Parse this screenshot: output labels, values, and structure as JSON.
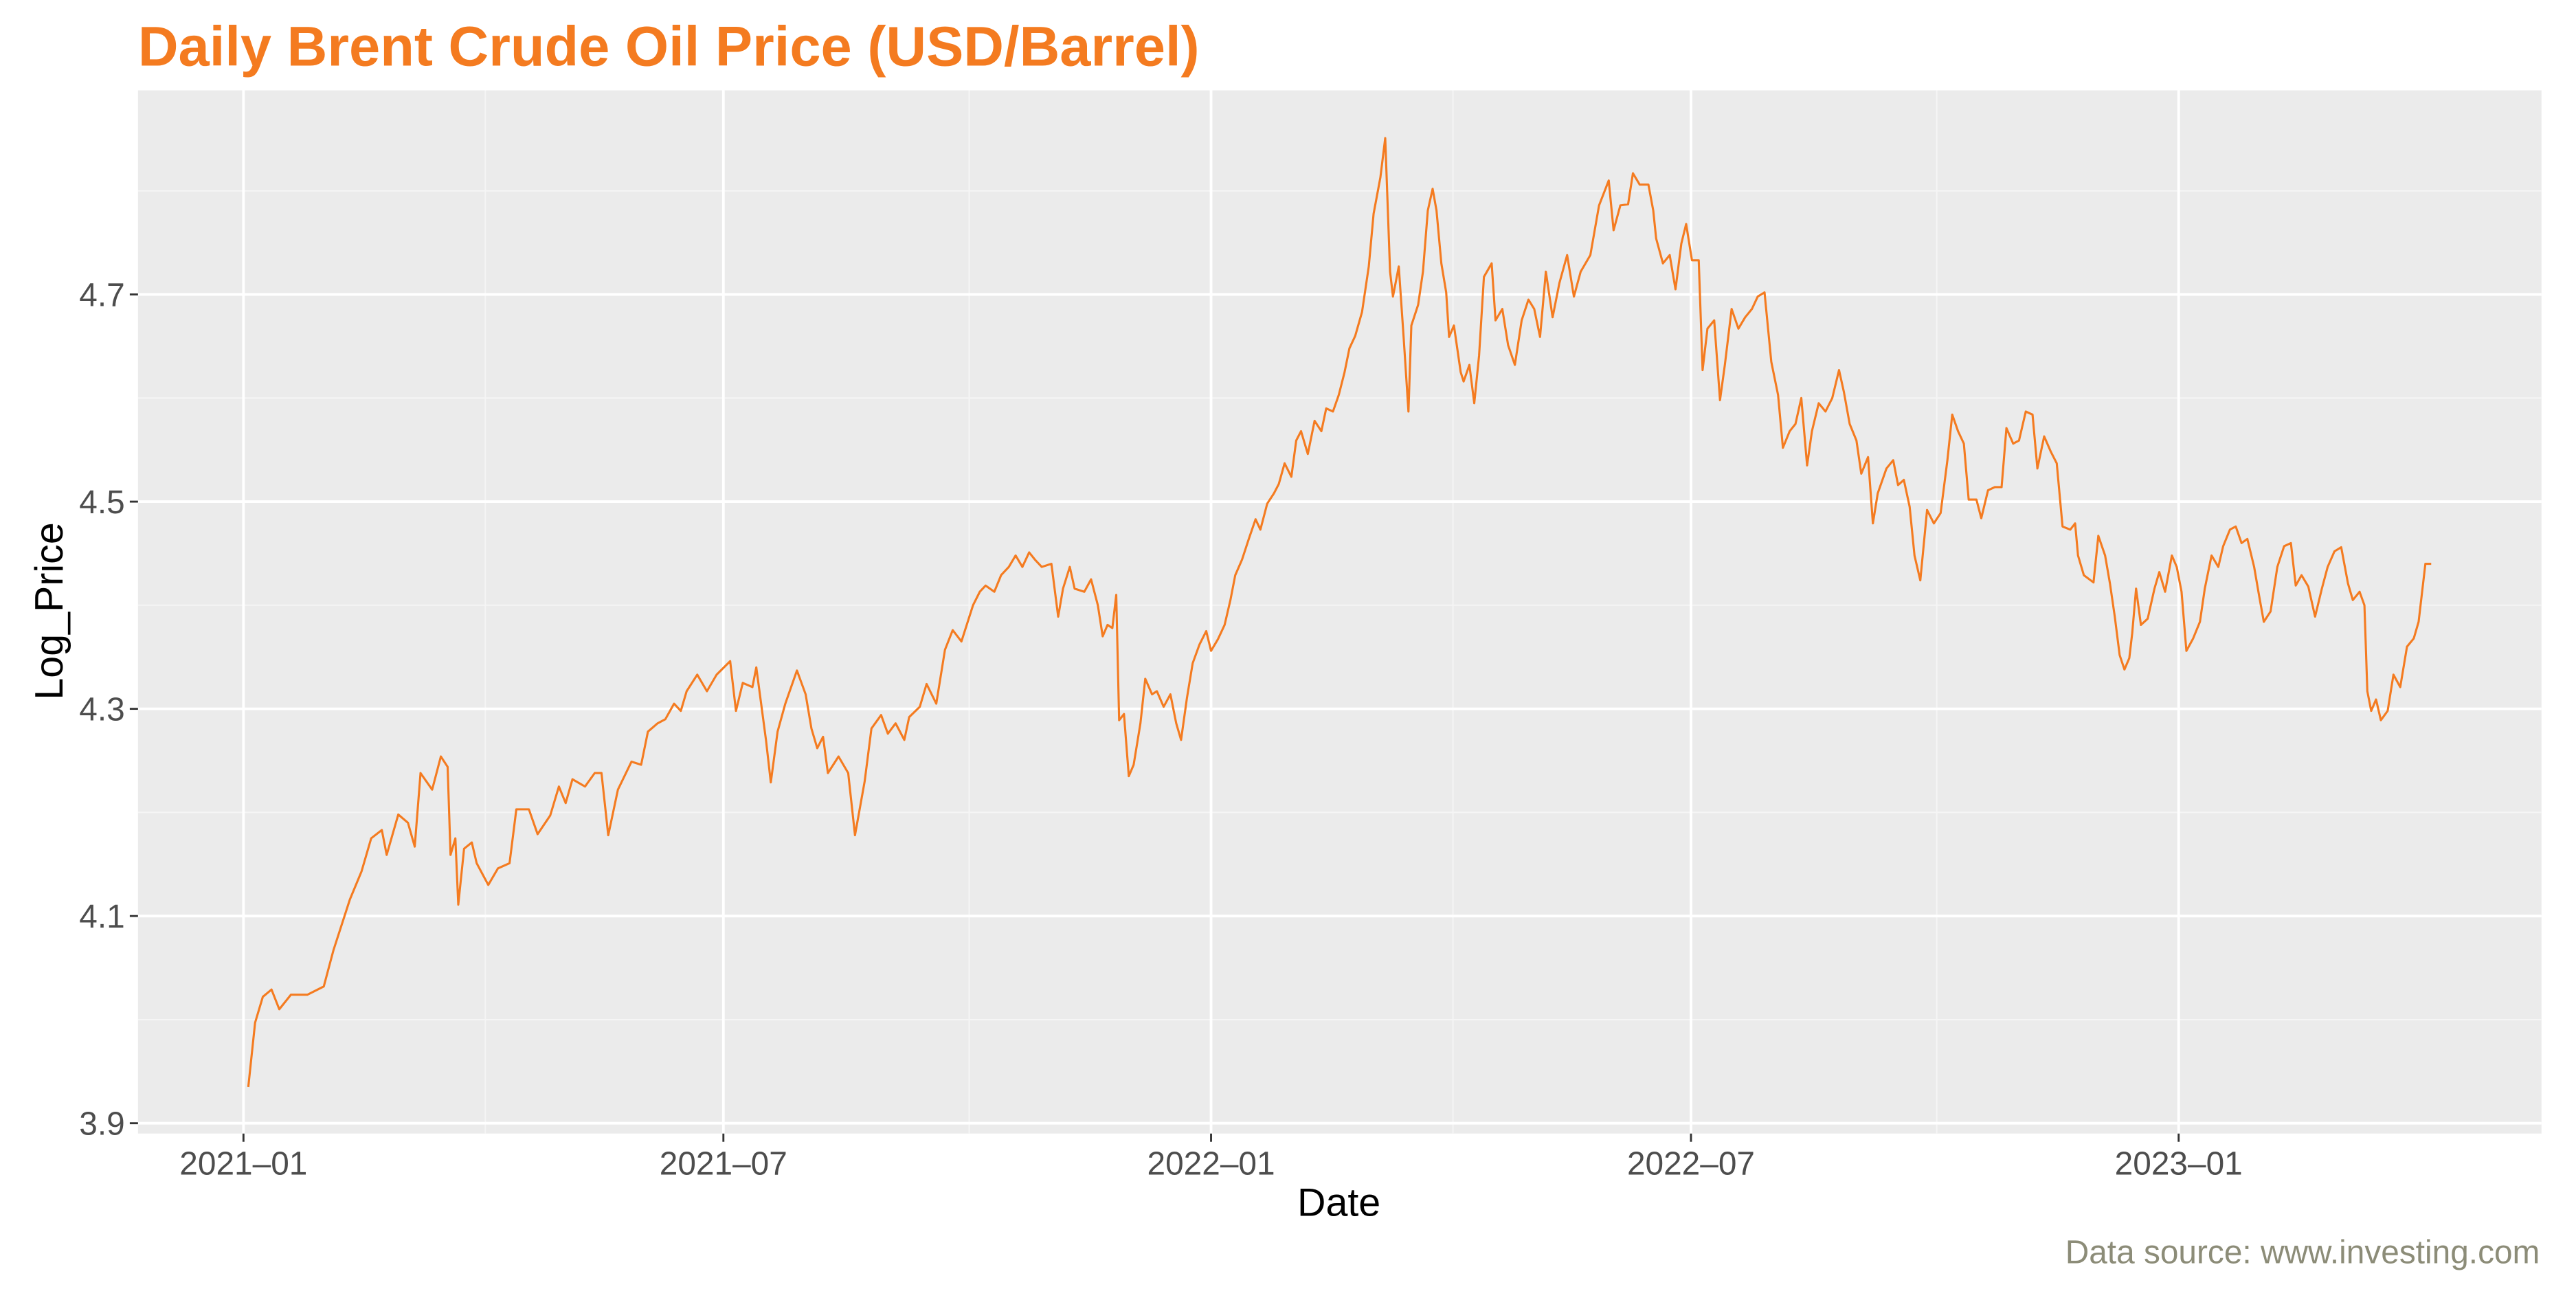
{
  "chart_data": {
    "type": "line",
    "title": "Daily Brent Crude Oil Price (USD/Barrel)",
    "xlabel": "Date",
    "ylabel": "Log_Price",
    "caption": "Data source: www.investing.com",
    "color": "#f47b20",
    "grid": true,
    "xlim": [
      2020.891,
      2023.375
    ],
    "ylim": [
      3.89,
      4.897
    ],
    "xticks": [
      {
        "value": 2021.0,
        "label": "2021‒01"
      },
      {
        "value": 2021.496,
        "label": "2021‒07"
      },
      {
        "value": 2022.0,
        "label": "2022‒01"
      },
      {
        "value": 2022.496,
        "label": "2022‒07"
      },
      {
        "value": 2023.0,
        "label": "2023‒01"
      }
    ],
    "yticks": [
      3.9,
      4.1,
      4.3,
      4.5,
      4.7
    ],
    "xminor": [
      2021.25,
      2021.75,
      2022.25,
      2022.75
    ],
    "yminor": [
      4.0,
      4.2,
      4.4,
      4.6,
      4.8
    ],
    "x": [
      2021.005,
      2021.012,
      2021.02,
      2021.029,
      2021.037,
      2021.049,
      2021.066,
      2021.083,
      2021.093,
      2021.11,
      2021.122,
      2021.132,
      2021.143,
      2021.148,
      2021.16,
      2021.17,
      2021.177,
      2021.183,
      2021.195,
      2021.204,
      2021.211,
      2021.214,
      2021.219,
      2021.222,
      2021.228,
      2021.236,
      2021.241,
      2021.253,
      2021.263,
      2021.275,
      2021.282,
      2021.295,
      2021.304,
      2021.317,
      2021.326,
      2021.333,
      2021.34,
      2021.353,
      2021.363,
      2021.37,
      2021.377,
      2021.387,
      2021.401,
      2021.411,
      2021.418,
      2021.428,
      2021.436,
      2021.445,
      2021.452,
      2021.458,
      2021.469,
      2021.479,
      2021.489,
      2021.503,
      2021.509,
      2021.516,
      2021.526,
      2021.53,
      2021.535,
      2021.54,
      2021.545,
      2021.552,
      2021.56,
      2021.572,
      2021.581,
      2021.587,
      2021.593,
      2021.599,
      2021.604,
      2021.615,
      2021.625,
      2021.632,
      2021.642,
      2021.649,
      2021.659,
      2021.666,
      2021.674,
      2021.683,
      2021.688,
      2021.699,
      2021.706,
      2021.716,
      2021.725,
      2021.733,
      2021.742,
      2021.754,
      2021.761,
      2021.767,
      2021.776,
      2021.783,
      2021.791,
      2021.798,
      2021.805,
      2021.812,
      2021.818,
      2021.825,
      2021.835,
      2021.842,
      2021.847,
      2021.854,
      2021.859,
      2021.869,
      2021.876,
      2021.883,
      2021.888,
      2021.893,
      2021.898,
      2021.902,
      2021.905,
      2021.91,
      2021.915,
      2021.92,
      2021.927,
      2021.932,
      2021.939,
      2021.944,
      2021.951,
      2021.958,
      2021.964,
      2021.969,
      2021.975,
      2021.981,
      2021.988,
      2021.995,
      2022.0,
      2022.007,
      2022.014,
      2022.02,
      2022.025,
      2022.032,
      2022.039,
      2022.046,
      2022.051,
      2022.058,
      2022.065,
      2022.07,
      2022.076,
      2022.083,
      2022.088,
      2022.093,
      2022.1,
      2022.107,
      2022.114,
      2022.119,
      2022.126,
      2022.132,
      2022.138,
      2022.143,
      2022.149,
      2022.156,
      2022.163,
      2022.168,
      2022.175,
      2022.18,
      2022.185,
      2022.188,
      2022.194,
      2022.199,
      2022.204,
      2022.207,
      2022.214,
      2022.219,
      2022.224,
      2022.229,
      2022.233,
      2022.238,
      2022.243,
      2022.246,
      2022.251,
      2022.258,
      2022.261,
      2022.267,
      2022.272,
      2022.277,
      2022.282,
      2022.29,
      2022.294,
      2022.301,
      2022.307,
      2022.314,
      2022.321,
      2022.328,
      2022.334,
      2022.34,
      2022.346,
      2022.353,
      2022.36,
      2022.368,
      2022.375,
      2022.382,
      2022.392,
      2022.401,
      2022.411,
      2022.416,
      2022.423,
      2022.431,
      2022.436,
      2022.443,
      2022.452,
      2022.457,
      2022.46,
      2022.467,
      2022.474,
      2022.48,
      2022.486,
      2022.491,
      2022.497,
      2022.504,
      2022.508,
      2022.513,
      2022.52,
      2022.526,
      2022.531,
      2022.538,
      2022.545,
      2022.552,
      2022.559,
      2022.565,
      2022.572,
      2022.579,
      2022.586,
      2022.591,
      2022.598,
      2022.604,
      2022.61,
      2022.616,
      2022.621,
      2022.628,
      2022.635,
      2022.642,
      2022.649,
      2022.654,
      2022.66,
      2022.667,
      2022.672,
      2022.679,
      2022.684,
      2022.689,
      2022.698,
      2022.705,
      2022.71,
      2022.716,
      2022.722,
      2022.727,
      2022.733,
      2022.74,
      2022.747,
      2022.754,
      2022.761,
      2022.766,
      2022.772,
      2022.778,
      2022.783,
      2022.791,
      2022.796,
      2022.803,
      2022.81,
      2022.817,
      2022.822,
      2022.829,
      2022.835,
      2022.842,
      2022.849,
      2022.854,
      2022.861,
      2022.868,
      2022.874,
      2022.88,
      2022.888,
      2022.893,
      2022.896,
      2022.902,
      2022.912,
      2022.917,
      2022.924,
      2022.929,
      2022.934,
      2022.939,
      2022.944,
      2022.949,
      2022.952,
      2022.956,
      2022.961,
      2022.968,
      2022.975,
      2022.98,
      2022.986,
      2022.993,
      2022.998,
      2023.003,
      2023.008,
      2023.015,
      2023.022,
      2023.027,
      2023.034,
      2023.041,
      2023.046,
      2023.053,
      2023.059,
      2023.065,
      2023.071,
      2023.078,
      2023.083,
      2023.088,
      2023.095,
      2023.102,
      2023.109,
      2023.116,
      2023.121,
      2023.127,
      2023.134,
      2023.141,
      2023.148,
      2023.154,
      2023.161,
      2023.168,
      2023.175,
      2023.18,
      2023.187,
      2023.192,
      2023.195,
      2023.199,
      2023.204,
      2023.209,
      2023.216,
      2023.222,
      2023.229,
      2023.236,
      2023.243,
      2023.248,
      2023.255,
      2023.261
    ],
    "values": [
      3.935,
      3.997,
      4.022,
      4.029,
      4.01,
      4.024,
      4.024,
      4.032,
      4.067,
      4.116,
      4.143,
      4.175,
      4.183,
      4.159,
      4.198,
      4.19,
      4.167,
      4.238,
      4.222,
      4.254,
      4.244,
      4.159,
      4.175,
      4.111,
      4.165,
      4.171,
      4.151,
      4.13,
      4.146,
      4.151,
      4.203,
      4.203,
      4.179,
      4.197,
      4.225,
      4.209,
      4.232,
      4.225,
      4.238,
      4.238,
      4.178,
      4.222,
      4.249,
      4.246,
      4.278,
      4.286,
      4.29,
      4.305,
      4.298,
      4.317,
      4.333,
      4.317,
      4.333,
      4.346,
      4.298,
      4.325,
      4.321,
      4.34,
      4.305,
      4.27,
      4.229,
      4.278,
      4.305,
      4.337,
      4.314,
      4.281,
      4.262,
      4.273,
      4.238,
      4.254,
      4.238,
      4.178,
      4.23,
      4.281,
      4.294,
      4.276,
      4.286,
      4.27,
      4.292,
      4.302,
      4.324,
      4.305,
      4.357,
      4.376,
      4.365,
      4.4,
      4.413,
      4.419,
      4.413,
      4.429,
      4.437,
      4.448,
      4.437,
      4.451,
      4.444,
      4.437,
      4.44,
      4.389,
      4.416,
      4.437,
      4.416,
      4.413,
      4.425,
      4.4,
      4.37,
      4.381,
      4.378,
      4.41,
      4.289,
      4.295,
      4.235,
      4.246,
      4.286,
      4.329,
      4.314,
      4.317,
      4.302,
      4.314,
      4.286,
      4.27,
      4.31,
      4.344,
      4.362,
      4.375,
      4.356,
      4.367,
      4.381,
      4.405,
      4.429,
      4.444,
      4.464,
      4.483,
      4.473,
      4.498,
      4.508,
      4.517,
      4.537,
      4.524,
      4.559,
      4.568,
      4.546,
      4.578,
      4.568,
      4.59,
      4.587,
      4.603,
      4.625,
      4.648,
      4.66,
      4.683,
      4.727,
      4.778,
      4.813,
      4.851,
      4.722,
      4.698,
      4.727,
      4.659,
      4.587,
      4.67,
      4.69,
      4.722,
      4.781,
      4.802,
      4.781,
      4.73,
      4.702,
      4.659,
      4.67,
      4.625,
      4.616,
      4.632,
      4.595,
      4.641,
      4.717,
      4.73,
      4.675,
      4.686,
      4.651,
      4.632,
      4.675,
      4.695,
      4.686,
      4.659,
      4.722,
      4.678,
      4.711,
      4.738,
      4.698,
      4.722,
      4.738,
      4.786,
      4.81,
      4.762,
      4.786,
      4.787,
      4.817,
      4.806,
      4.806,
      4.781,
      4.754,
      4.73,
      4.738,
      4.705,
      4.749,
      4.768,
      4.733,
      4.733,
      4.627,
      4.667,
      4.675,
      4.598,
      4.632,
      4.686,
      4.667,
      4.678,
      4.686,
      4.698,
      4.702,
      4.635,
      4.603,
      4.552,
      4.568,
      4.575,
      4.6,
      4.535,
      4.568,
      4.595,
      4.587,
      4.6,
      4.627,
      4.606,
      4.575,
      4.559,
      4.527,
      4.543,
      4.479,
      4.508,
      4.532,
      4.54,
      4.516,
      4.521,
      4.495,
      4.448,
      4.424,
      4.492,
      4.479,
      4.489,
      4.54,
      4.584,
      4.568,
      4.556,
      4.502,
      4.502,
      4.484,
      4.511,
      4.514,
      4.514,
      4.571,
      4.556,
      4.559,
      4.587,
      4.584,
      4.532,
      4.563,
      4.548,
      4.537,
      4.476,
      4.473,
      4.479,
      4.448,
      4.429,
      4.422,
      4.467,
      4.448,
      4.421,
      4.389,
      4.352,
      4.338,
      4.349,
      4.373,
      4.416,
      4.381,
      4.387,
      4.416,
      4.432,
      4.413,
      4.448,
      4.437,
      4.413,
      4.356,
      4.368,
      4.384,
      4.416,
      4.448,
      4.437,
      4.457,
      4.473,
      4.476,
      4.46,
      4.464,
      4.437,
      4.41,
      4.384,
      4.394,
      4.437,
      4.457,
      4.46,
      4.419,
      4.429,
      4.418,
      4.389,
      4.416,
      4.437,
      4.452,
      4.456,
      4.421,
      4.405,
      4.413,
      4.4,
      4.317,
      4.298,
      4.309,
      4.289,
      4.298,
      4.333,
      4.321,
      4.36,
      4.368,
      4.384,
      4.44,
      4.44
    ]
  }
}
